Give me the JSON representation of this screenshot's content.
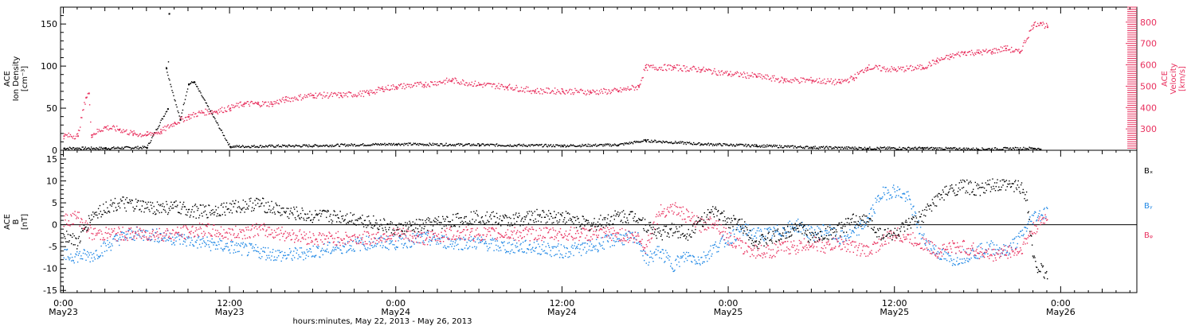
{
  "colors": {
    "black": "#000000",
    "pink": "#e8305e",
    "blue": "#1e87e5",
    "frame": "#000000"
  },
  "xaxis": {
    "title": "hours:minutes, May 22, 2013 - May 26, 2013",
    "ticks": [
      {
        "hour": 0,
        "time": "0:00",
        "day": "May23"
      },
      {
        "hour": 12,
        "time": "12:00",
        "day": "May23"
      },
      {
        "hour": 24,
        "time": "0:00",
        "day": "May24"
      },
      {
        "hour": 36,
        "time": "12:00",
        "day": "May24"
      },
      {
        "hour": 48,
        "time": "0:00",
        "day": "May25"
      },
      {
        "hour": 60,
        "time": "12:00",
        "day": "May25"
      },
      {
        "hour": 72,
        "time": "0:00",
        "day": "May26"
      }
    ]
  },
  "chart_data": [
    {
      "type": "scatter",
      "panel": "top",
      "x_unit": "hours from May 23 0:00",
      "xlim": [
        -0.2,
        77.5
      ],
      "ylabel": [
        "ACE",
        "Ion Density",
        "[cm⁻³]"
      ],
      "ylim": [
        0,
        170
      ],
      "yticks": [
        0,
        50,
        100,
        150
      ],
      "y2label": [
        "ACE",
        "Velocity",
        "[km/s]"
      ],
      "y2lim": [
        200,
        870
      ],
      "y2ticks": [
        300,
        400,
        500,
        600,
        700,
        800
      ],
      "series": [
        {
          "name": "",
          "axis": "left",
          "color": "black",
          "points": [
            [
              0,
              3
            ],
            [
              3,
              3
            ],
            [
              6,
              4
            ],
            [
              7.5,
              50
            ],
            [
              7.6,
              163
            ],
            [
              7.4,
              98
            ],
            [
              8.4,
              37
            ],
            [
              9,
              79
            ],
            [
              9.4,
              82
            ],
            [
              12,
              5
            ],
            [
              18,
              6
            ],
            [
              24,
              8
            ],
            [
              30,
              7
            ],
            [
              36,
              6
            ],
            [
              40,
              7
            ],
            [
              42,
              12
            ],
            [
              46,
              8
            ],
            [
              50,
              6
            ],
            [
              54,
              4
            ],
            [
              58,
              3
            ],
            [
              62,
              3
            ],
            [
              66,
              2
            ],
            [
              70,
              3
            ],
            [
              70.5,
              2
            ]
          ]
        },
        {
          "name": "",
          "axis": "right",
          "color": "pink",
          "points": [
            [
              0,
              270
            ],
            [
              1,
              270
            ],
            [
              1.6,
              450
            ],
            [
              1.8,
              470
            ],
            [
              2,
              275
            ],
            [
              3,
              310
            ],
            [
              4,
              300
            ],
            [
              5,
              280
            ],
            [
              6,
              275
            ],
            [
              7,
              290
            ],
            [
              8,
              330
            ],
            [
              9,
              360
            ],
            [
              10,
              380
            ],
            [
              11,
              385
            ],
            [
              12,
              400
            ],
            [
              13,
              420
            ],
            [
              14,
              420
            ],
            [
              15,
              420
            ],
            [
              16,
              440
            ],
            [
              18,
              460
            ],
            [
              20,
              460
            ],
            [
              22,
              470
            ],
            [
              23,
              490
            ],
            [
              24,
              500
            ],
            [
              26,
              510
            ],
            [
              28,
              530
            ],
            [
              30,
              510
            ],
            [
              32,
              500
            ],
            [
              34,
              480
            ],
            [
              36,
              480
            ],
            [
              38,
              475
            ],
            [
              40,
              480
            ],
            [
              41.5,
              500
            ],
            [
              42,
              590
            ],
            [
              44,
              590
            ],
            [
              46,
              580
            ],
            [
              48,
              560
            ],
            [
              50,
              550
            ],
            [
              52,
              530
            ],
            [
              54,
              530
            ],
            [
              56,
              520
            ],
            [
              57,
              540
            ],
            [
              58,
              590
            ],
            [
              60,
              580
            ],
            [
              62,
              590
            ],
            [
              63,
              620
            ],
            [
              64,
              640
            ],
            [
              65,
              660
            ],
            [
              66,
              660
            ],
            [
              67,
              665
            ],
            [
              68,
              680
            ],
            [
              69,
              660
            ],
            [
              70,
              790
            ],
            [
              70.5,
              800
            ],
            [
              71,
              780
            ]
          ]
        }
      ]
    },
    {
      "type": "scatter",
      "panel": "bottom",
      "x_unit": "hours from May 23 0:00",
      "xlim": [
        -0.2,
        77.5
      ],
      "ylabel": [
        "ACE",
        "B",
        "[nT]"
      ],
      "ylim": [
        -15.5,
        17
      ],
      "yticks": [
        -15,
        -10,
        -5,
        0,
        5,
        10,
        15
      ],
      "zero_line": true,
      "series": [
        {
          "name": "Bₓ",
          "color": "black",
          "points": [
            [
              0,
              -2
            ],
            [
              1,
              -4
            ],
            [
              2,
              2
            ],
            [
              3,
              4
            ],
            [
              4,
              5
            ],
            [
              6,
              4
            ],
            [
              8,
              4
            ],
            [
              10,
              3
            ],
            [
              12,
              4
            ],
            [
              14,
              5
            ],
            [
              16,
              3
            ],
            [
              18,
              2
            ],
            [
              20,
              2
            ],
            [
              22,
              1
            ],
            [
              24,
              -1
            ],
            [
              26,
              0
            ],
            [
              28,
              1
            ],
            [
              30,
              2
            ],
            [
              32,
              1
            ],
            [
              34,
              2
            ],
            [
              36,
              2
            ],
            [
              38,
              0
            ],
            [
              40,
              2
            ],
            [
              41.5,
              2
            ],
            [
              42,
              0
            ],
            [
              43,
              -2
            ],
            [
              44,
              -1
            ],
            [
              45,
              -2
            ],
            [
              46,
              1
            ],
            [
              47,
              3
            ],
            [
              48,
              1
            ],
            [
              49,
              0
            ],
            [
              50,
              -4
            ],
            [
              51,
              -3
            ],
            [
              52,
              -2
            ],
            [
              53,
              0
            ],
            [
              54,
              -3
            ],
            [
              55,
              -2
            ],
            [
              56,
              -1
            ],
            [
              57,
              1
            ],
            [
              58,
              1
            ],
            [
              59,
              -2
            ],
            [
              60,
              -2
            ],
            [
              61,
              0
            ],
            [
              62,
              2
            ],
            [
              63,
              6
            ],
            [
              64,
              8
            ],
            [
              65,
              9
            ],
            [
              66,
              8
            ],
            [
              67,
              9
            ],
            [
              68,
              9
            ],
            [
              69,
              9
            ],
            [
              69.5,
              7
            ],
            [
              70,
              -8
            ],
            [
              70.5,
              -10
            ],
            [
              71,
              -11.5
            ]
          ]
        },
        {
          "name": "Bᵧ",
          "color": "blue",
          "points": [
            [
              0,
              -7
            ],
            [
              1,
              -7
            ],
            [
              2,
              -7
            ],
            [
              3,
              -5
            ],
            [
              4,
              -3
            ],
            [
              5,
              -2
            ],
            [
              6,
              -2
            ],
            [
              8,
              -3
            ],
            [
              10,
              -4
            ],
            [
              12,
              -5
            ],
            [
              14,
              -6
            ],
            [
              16,
              -7
            ],
            [
              18,
              -6
            ],
            [
              20,
              -5
            ],
            [
              22,
              -4
            ],
            [
              24,
              -4
            ],
            [
              26,
              -3
            ],
            [
              28,
              -4
            ],
            [
              30,
              -4
            ],
            [
              32,
              -5
            ],
            [
              34,
              -5
            ],
            [
              36,
              -6
            ],
            [
              38,
              -5
            ],
            [
              40,
              -3
            ],
            [
              41.5,
              -3
            ],
            [
              42,
              -8
            ],
            [
              43,
              -6
            ],
            [
              44,
              -9
            ],
            [
              45,
              -7
            ],
            [
              46,
              -8
            ],
            [
              47,
              -5
            ],
            [
              48,
              -3
            ],
            [
              49,
              -1
            ],
            [
              50,
              -2
            ],
            [
              51,
              -2
            ],
            [
              52,
              -1
            ],
            [
              53,
              0
            ],
            [
              54,
              -2
            ],
            [
              55,
              -1
            ],
            [
              56,
              -3
            ],
            [
              57,
              -2
            ],
            [
              58,
              1
            ],
            [
              59,
              7
            ],
            [
              60,
              8
            ],
            [
              61,
              6
            ],
            [
              62,
              -3
            ],
            [
              63,
              -6
            ],
            [
              64,
              -8
            ],
            [
              65,
              -7
            ],
            [
              66,
              -6
            ],
            [
              67,
              -5
            ],
            [
              68,
              -6
            ],
            [
              69,
              -3
            ],
            [
              70,
              2
            ],
            [
              71,
              3
            ]
          ]
        },
        {
          "name": "Bᵩ",
          "color": "pink",
          "points": [
            [
              0,
              1
            ],
            [
              1,
              2
            ],
            [
              2,
              -2
            ],
            [
              4,
              -2
            ],
            [
              6,
              -2
            ],
            [
              8,
              -2
            ],
            [
              10,
              -1
            ],
            [
              12,
              -2
            ],
            [
              14,
              -1
            ],
            [
              16,
              -2
            ],
            [
              18,
              -3
            ],
            [
              20,
              -3
            ],
            [
              22,
              -3
            ],
            [
              24,
              -2
            ],
            [
              26,
              -3
            ],
            [
              28,
              -2
            ],
            [
              30,
              -2
            ],
            [
              32,
              -2
            ],
            [
              34,
              -2
            ],
            [
              36,
              -2
            ],
            [
              38,
              -2
            ],
            [
              40,
              -2
            ],
            [
              41.5,
              -3
            ],
            [
              42,
              -5
            ],
            [
              43,
              3
            ],
            [
              44,
              4
            ],
            [
              45,
              2
            ],
            [
              46,
              0
            ],
            [
              47,
              1
            ],
            [
              48,
              -3
            ],
            [
              49,
              -5
            ],
            [
              50,
              -6
            ],
            [
              51,
              -6
            ],
            [
              52,
              -5
            ],
            [
              53,
              -5
            ],
            [
              54,
              -4
            ],
            [
              55,
              -5
            ],
            [
              56,
              -4
            ],
            [
              57,
              -5
            ],
            [
              58,
              -6
            ],
            [
              59,
              -4
            ],
            [
              60,
              -2
            ],
            [
              61,
              -3
            ],
            [
              62,
              -4
            ],
            [
              63,
              -6
            ],
            [
              64,
              -5
            ],
            [
              65,
              -5
            ],
            [
              66,
              -6
            ],
            [
              67,
              -7
            ],
            [
              68,
              -6
            ],
            [
              69,
              -6
            ],
            [
              70,
              -1
            ],
            [
              71,
              2
            ]
          ]
        }
      ]
    }
  ]
}
